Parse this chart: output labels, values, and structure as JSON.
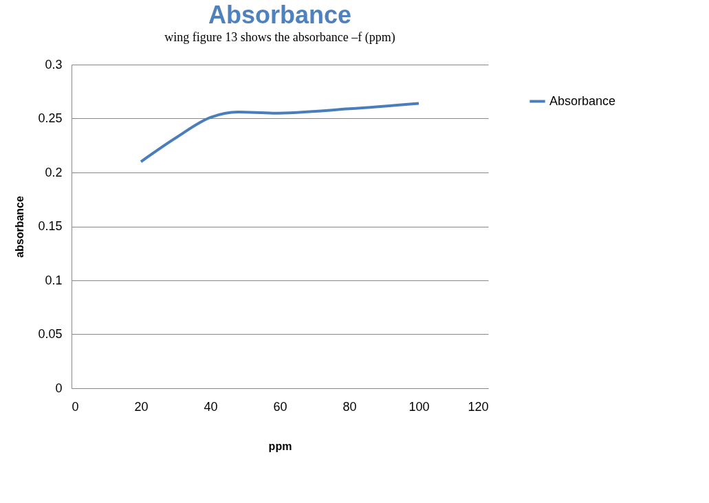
{
  "chart_data": {
    "type": "line",
    "title": "Absorbance",
    "xlabel": "ppm",
    "ylabel": "absorbance",
    "annotations": [
      "wing figure 13 shows the absorbance –f (ppm)"
    ],
    "x": [
      20,
      30,
      40,
      48,
      58,
      80,
      100
    ],
    "series": [
      {
        "name": "Absorbance",
        "color": "#4a7ebb",
        "values": [
          0.21,
          0.232,
          0.251,
          0.256,
          0.255,
          0.259,
          0.264
        ]
      }
    ],
    "xlim": [
      0,
      120
    ],
    "xticks": [
      0,
      20,
      40,
      60,
      80,
      100,
      120
    ],
    "ylim": [
      0,
      0.3
    ],
    "yticks": [
      0,
      0.05,
      0.1,
      0.15,
      0.2,
      0.25,
      0.3
    ],
    "grid": "y",
    "legend": "right",
    "marker": "none",
    "line_style": "solid"
  }
}
